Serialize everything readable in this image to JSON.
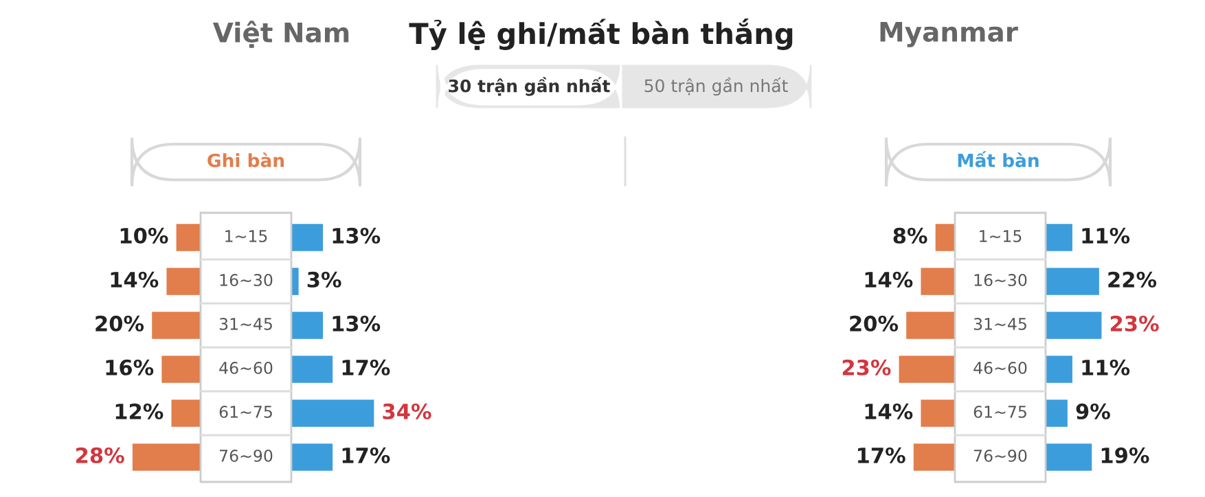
{
  "chart_data": [
    {
      "type": "other",
      "title": "Tỷ lệ ghi/mất bàn thắng",
      "annotations": [
        "30 trận gần nhất",
        "50 trận gần nhất"
      ]
    },
    {
      "type": "bar",
      "orientation": "horizontal",
      "title": "Việt Nam",
      "subtitle": "Ghi bàn",
      "categories": [
        "1~15",
        "16~30",
        "31~45",
        "46~60",
        "61~75",
        "76~90"
      ],
      "values": [
        10,
        14,
        20,
        16,
        12,
        28
      ],
      "value_labels": [
        "10%",
        "14%",
        "20%",
        "16%",
        "12%",
        "28%"
      ],
      "color": "#e27d4c"
    },
    {
      "type": "bar",
      "orientation": "horizontal",
      "categories": [
        null,
        null,
        null,
        null,
        null,
        null
      ],
      "values": [
        13,
        3,
        13,
        17,
        34,
        17
      ],
      "value_labels": [
        "13%",
        "3%",
        "13%",
        "17%",
        "34%",
        "17%"
      ],
      "color": "#3c9ddc"
    },
    {
      "type": "bar",
      "orientation": "horizontal",
      "title": "Myanmar",
      "subtitle": "Mất bàn",
      "categories": [
        "1~15",
        "16~30",
        "31~45",
        "46~60",
        "61~75",
        "76~90"
      ],
      "values": [
        8,
        14,
        20,
        23,
        14,
        17
      ],
      "value_labels": [
        "8%",
        "14%",
        "20%",
        "23%",
        "14%",
        "17%"
      ],
      "color": "#e27d4c"
    },
    {
      "type": "bar",
      "orientation": "horizontal",
      "categories": [
        null,
        null,
        null,
        null,
        null,
        null
      ],
      "values": [
        11,
        22,
        23,
        11,
        9,
        19
      ],
      "value_labels": [
        "11%",
        "22%",
        "23%",
        "11%",
        "9%",
        "19%"
      ],
      "color": "#3c9ddc"
    }
  ]
}
